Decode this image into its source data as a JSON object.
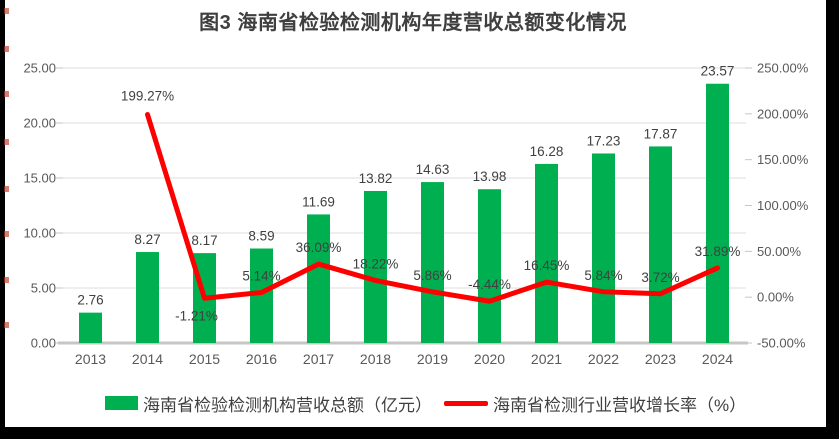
{
  "page": {
    "title": "图3 海南省检验检测机构年度营收总额变化情况"
  },
  "chart_data": {
    "type": "bar+line",
    "title": "图3 海南省检验检测机构年度营收总额变化情况",
    "categories": [
      "2013",
      "2014",
      "2015",
      "2016",
      "2017",
      "2018",
      "2019",
      "2020",
      "2021",
      "2022",
      "2023",
      "2024"
    ],
    "series": [
      {
        "name": "海南省检验检测机构营收总额（亿元）",
        "type": "bar",
        "axis": "left",
        "color": "#00B050",
        "values": [
          2.76,
          8.27,
          8.17,
          8.59,
          11.69,
          13.82,
          14.63,
          13.98,
          16.28,
          17.23,
          17.87,
          23.57
        ],
        "labels": [
          "2.76",
          "8.27",
          "8.17",
          "8.59",
          "11.69",
          "13.82",
          "14.63",
          "13.98",
          "16.28",
          "17.23",
          "17.87",
          "23.57"
        ]
      },
      {
        "name": "海南省检测行业营收增长率（%）",
        "type": "line",
        "axis": "right",
        "color": "#FF0000",
        "values": [
          null,
          199.27,
          -1.21,
          5.14,
          36.09,
          18.22,
          5.86,
          -4.44,
          16.45,
          5.84,
          3.72,
          31.89
        ],
        "labels": [
          "",
          "199.27%",
          "-1.21%",
          "5.14%",
          "36.09%",
          "18.22%",
          "5.86%",
          "-4.44%",
          "16.45%",
          "5.84%",
          "3.72%",
          "31.89%"
        ]
      }
    ],
    "left_axis": {
      "min": 0,
      "max": 25,
      "step": 5,
      "ticks": [
        "0.00",
        "5.00",
        "10.00",
        "15.00",
        "20.00",
        "25.00"
      ]
    },
    "right_axis": {
      "min": -50,
      "max": 250,
      "step": 50,
      "ticks": [
        "-50.00%",
        "0.00%",
        "50.00%",
        "100.00%",
        "150.00%",
        "200.00%",
        "250.00%"
      ]
    },
    "grid": true,
    "legend_position": "bottom"
  },
  "legend": {
    "revenue_label": "海南省检验检测机构营收总额（亿元）",
    "growth_label": "海南省检测行业营收增长率（%）"
  },
  "colors": {
    "bar": "#00B050",
    "line": "#FF0000",
    "gridline": "#DCDCDC",
    "axis_line": "#C6C6C6",
    "axis_text": "#595959",
    "label_text": "#404040"
  }
}
